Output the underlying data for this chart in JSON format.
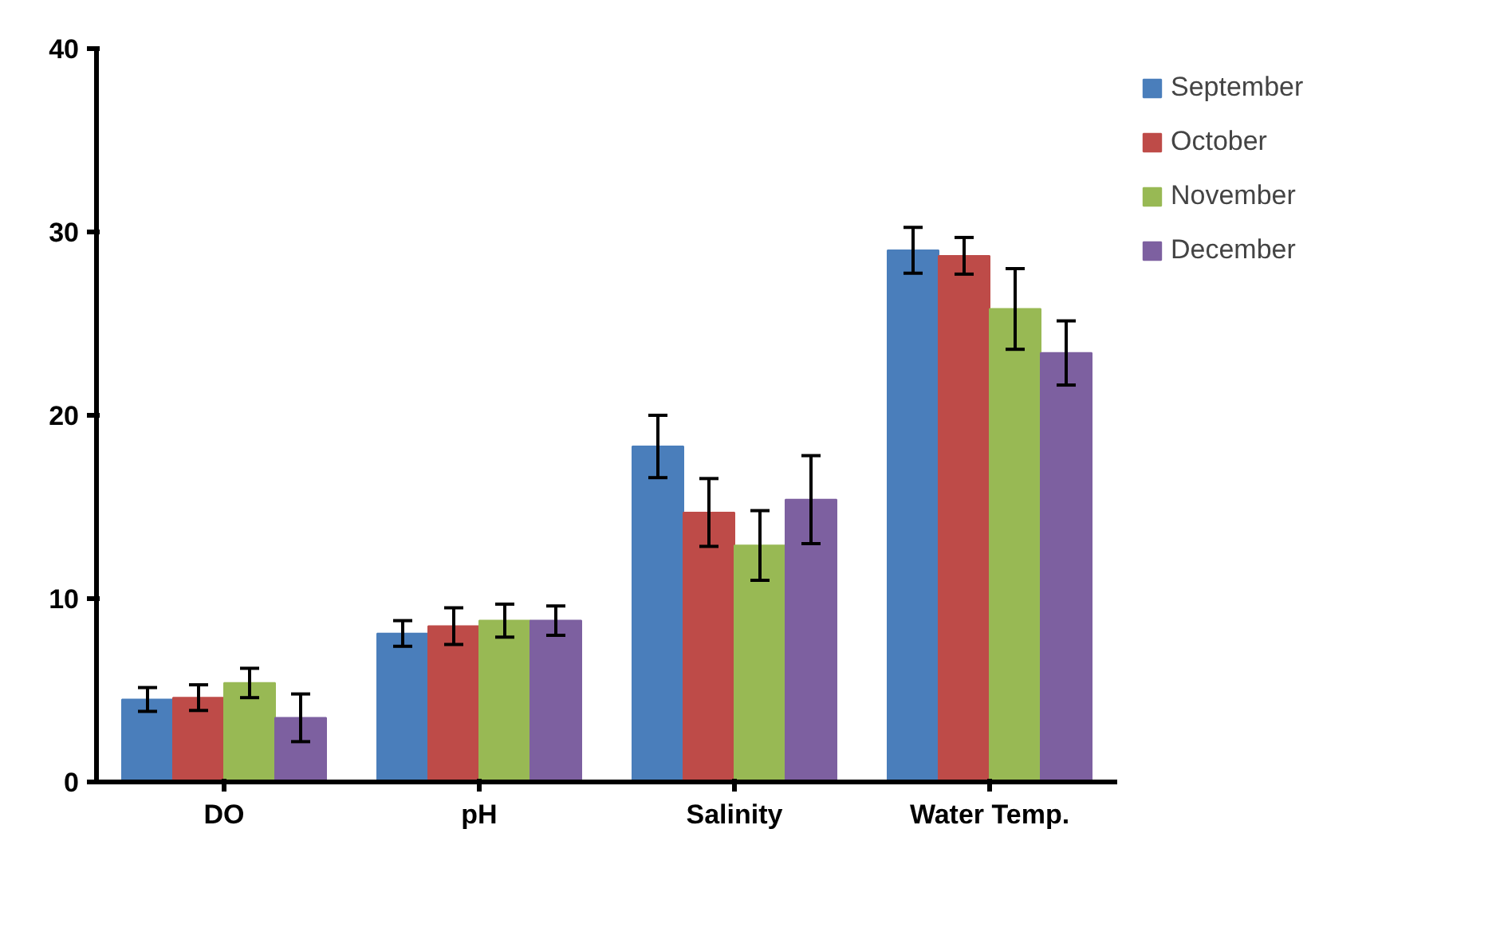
{
  "chart_data": {
    "type": "bar",
    "categories": [
      "DO",
      "pH",
      "Salinity",
      "Water Temp."
    ],
    "series": [
      {
        "name": "September",
        "color": "#4a7ebb",
        "values": [
          4.5,
          8.1,
          18.3,
          29.0
        ],
        "errors": [
          0.65,
          0.7,
          1.7,
          1.25
        ]
      },
      {
        "name": "October",
        "color": "#be4b48",
        "values": [
          4.6,
          8.5,
          14.7,
          28.7
        ],
        "errors": [
          0.7,
          1.0,
          1.85,
          1.0
        ]
      },
      {
        "name": "November",
        "color": "#98b954",
        "values": [
          5.4,
          8.8,
          12.9,
          25.8
        ],
        "errors": [
          0.8,
          0.9,
          1.9,
          2.2
        ]
      },
      {
        "name": "December",
        "color": "#7d60a0",
        "values": [
          3.5,
          8.8,
          15.4,
          23.4
        ],
        "errors": [
          1.3,
          0.8,
          2.4,
          1.75
        ]
      }
    ],
    "ylim": [
      0,
      40
    ],
    "yticks": [
      0,
      10,
      20,
      30,
      40
    ],
    "grid": false,
    "legend": "right"
  }
}
